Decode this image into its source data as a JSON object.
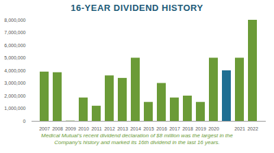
{
  "chart_data": {
    "type": "bar",
    "title": "16-YEAR DIVIDEND HISTORY",
    "subtitle": "Medical Mutual's recent dividend declaration of $8 million was the largest in the Company's history and marked its 16th dividend in the last 16 years.",
    "categories": [
      "2007",
      "2008",
      "2009",
      "2010",
      "2011",
      "2012",
      "2013",
      "2014",
      "2015",
      "2016",
      "2017",
      "2018",
      "2019",
      "2020",
      null,
      "2021",
      "2022"
    ],
    "values": [
      3900000,
      3850000,
      20000,
      1850000,
      1200000,
      3600000,
      3400000,
      5000000,
      1500000,
      3000000,
      1850000,
      2000000,
      1500000,
      5000000,
      4000000,
      5000000,
      8000000
    ],
    "colors": [
      "#6b9b37",
      "#6b9b37",
      "#6b9b37",
      "#6b9b37",
      "#6b9b37",
      "#6b9b37",
      "#6b9b37",
      "#6b9b37",
      "#6b9b37",
      "#6b9b37",
      "#6b9b37",
      "#6b9b37",
      "#6b9b37",
      "#6b9b37",
      "#1f6f93",
      "#6b9b37",
      "#6b9b37"
    ],
    "ylim": [
      0,
      8000000
    ],
    "yticks": [
      0,
      {
        "value": 1000000,
        "label": "1,000,000"
      },
      {
        "value": 2000000,
        "label": "2,000,000"
      },
      {
        "value": 3000000,
        "label": "3,000,000"
      },
      {
        "value": 4000000,
        "label": "4,000,000"
      },
      {
        "value": 5000000,
        "label": "5,000,000"
      },
      {
        "value": 6000000,
        "label": "6,000,000"
      },
      {
        "value": 7000000,
        "label": "7,000,000"
      },
      {
        "value": 8000000,
        "label": "8,000,000"
      }
    ],
    "grid": false
  }
}
